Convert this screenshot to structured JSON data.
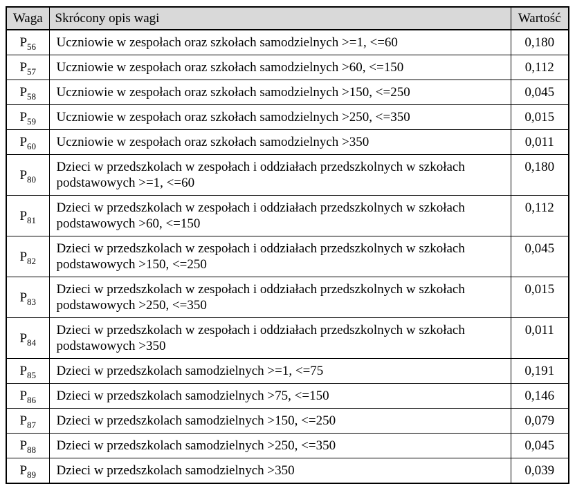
{
  "table": {
    "headers": {
      "waga": "Waga",
      "opis": "Skrócony opis wagi",
      "wartosc": "Wartość"
    },
    "rows": [
      {
        "waga_base": "P",
        "waga_sub": "56",
        "opis": "Uczniowie w zespołach oraz szkołach samodzielnych >=1, <=60",
        "wartosc": "0,180"
      },
      {
        "waga_base": "P",
        "waga_sub": "57",
        "opis": "Uczniowie w zespołach oraz szkołach samodzielnych >60, <=150",
        "wartosc": "0,112"
      },
      {
        "waga_base": "P",
        "waga_sub": "58",
        "opis": "Uczniowie w zespołach oraz szkołach samodzielnych >150, <=250",
        "wartosc": "0,045"
      },
      {
        "waga_base": "P",
        "waga_sub": "59",
        "opis": "Uczniowie w zespołach oraz szkołach samodzielnych >250, <=350",
        "wartosc": "0,015"
      },
      {
        "waga_base": "P",
        "waga_sub": "60",
        "opis": "Uczniowie w zespołach oraz szkołach samodzielnych >350",
        "wartosc": "0,011"
      },
      {
        "waga_base": "P",
        "waga_sub": "80",
        "opis": "Dzieci w przedszkolach w zespołach i oddziałach przedszkolnych w szkołach podstawowych >=1, <=60",
        "wartosc": "0,180"
      },
      {
        "waga_base": "P",
        "waga_sub": "81",
        "opis": "Dzieci w przedszkolach w zespołach i oddziałach przedszkolnych w szkołach podstawowych >60, <=150",
        "wartosc": "0,112"
      },
      {
        "waga_base": "P",
        "waga_sub": "82",
        "opis": "Dzieci w przedszkolach w zespołach i oddziałach przedszkolnych w szkołach podstawowych >150, <=250",
        "wartosc": "0,045"
      },
      {
        "waga_base": "P",
        "waga_sub": "83",
        "opis": "Dzieci w przedszkolach w zespołach i oddziałach przedszkolnych w szkołach podstawowych >250, <=350",
        "wartosc": "0,015"
      },
      {
        "waga_base": "P",
        "waga_sub": "84",
        "opis": "Dzieci w przedszkolach w zespołach i oddziałach przedszkolnych w szkołach podstawowych >350",
        "wartosc": "0,011"
      },
      {
        "waga_base": "P",
        "waga_sub": "85",
        "opis": "Dzieci w przedszkolach samodzielnych >=1, <=75",
        "wartosc": "0,191"
      },
      {
        "waga_base": "P",
        "waga_sub": "86",
        "opis": "Dzieci w przedszkolach samodzielnych >75, <=150",
        "wartosc": "0,146"
      },
      {
        "waga_base": "P",
        "waga_sub": "87",
        "opis": "Dzieci w przedszkolach samodzielnych >150, <=250",
        "wartosc": "0,079"
      },
      {
        "waga_base": "P",
        "waga_sub": "88",
        "opis": "Dzieci w przedszkolach samodzielnych >250, <=350",
        "wartosc": "0,045"
      },
      {
        "waga_base": "P",
        "waga_sub": "89",
        "opis": "Dzieci w przedszkolach samodzielnych >350",
        "wartosc": "0,039"
      }
    ]
  }
}
